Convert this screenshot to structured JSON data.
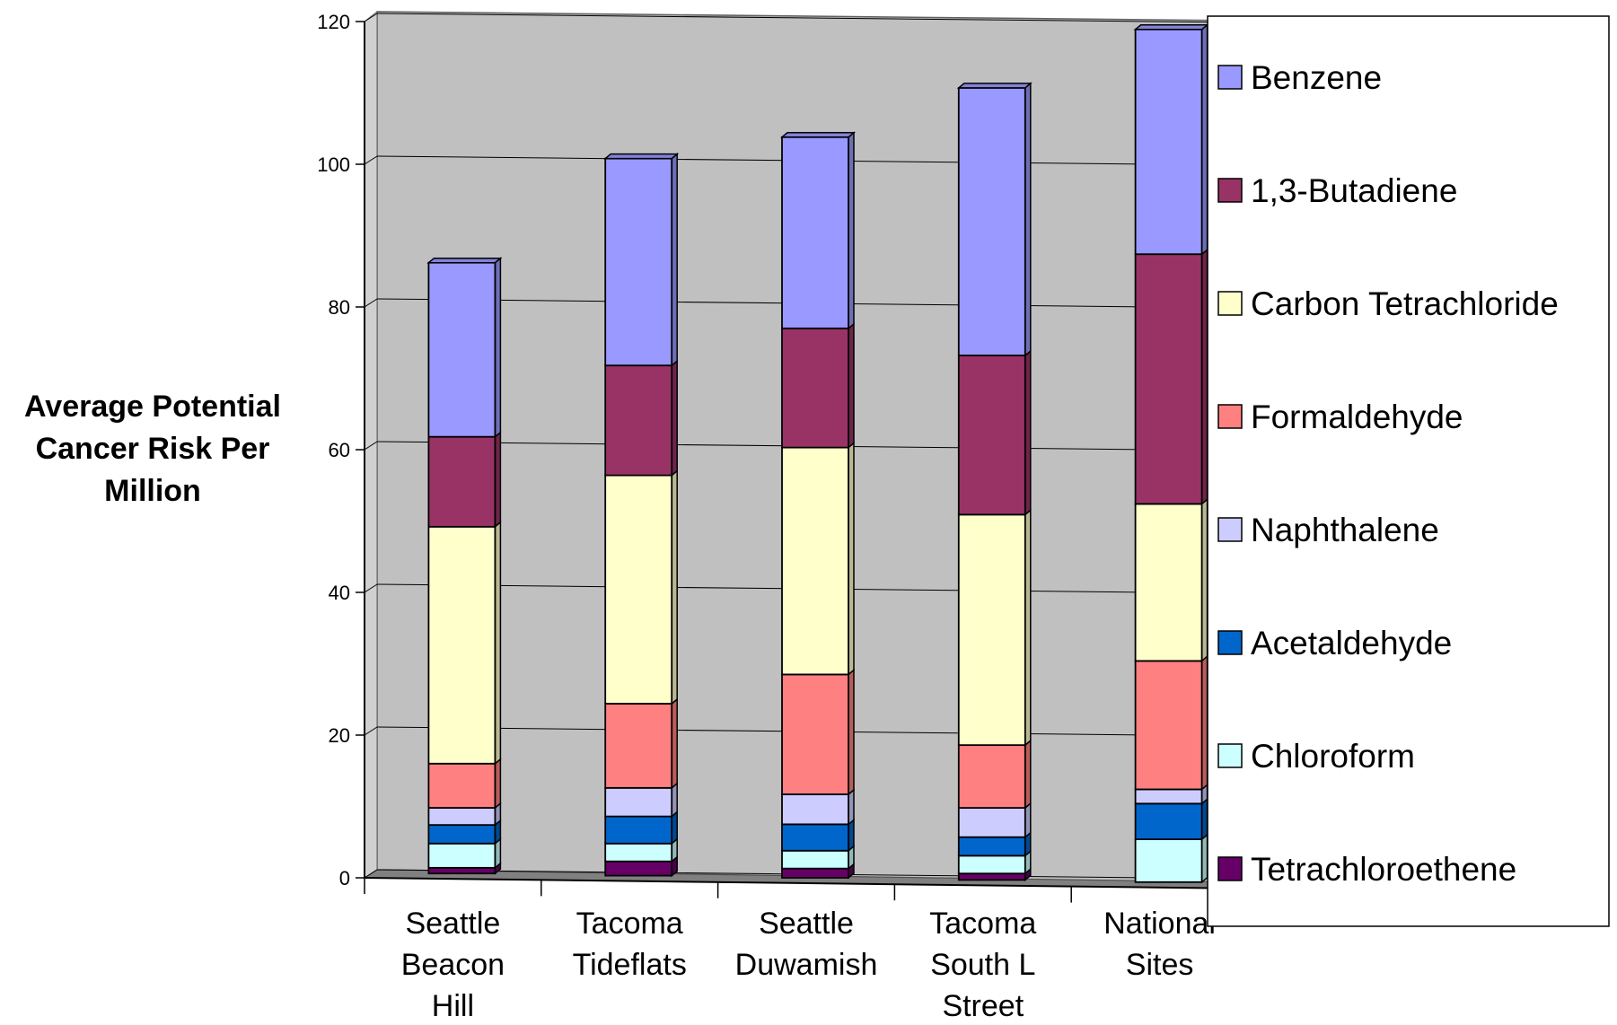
{
  "chart_data": {
    "type": "bar",
    "stacked": true,
    "three_d": true,
    "ylabel_lines": [
      "Average Potential",
      "Cancer Risk Per",
      "Million"
    ],
    "ylim": [
      0,
      120
    ],
    "yticks": [
      0,
      20,
      40,
      60,
      80,
      100,
      120
    ],
    "grid": true,
    "legend_position": "right",
    "categories": [
      [
        "Seattle",
        "Beacon",
        "Hill"
      ],
      [
        "Tacoma",
        "Tideflats"
      ],
      [
        "Seattle",
        "Duwamish"
      ],
      [
        "Tacoma",
        "South L",
        "Street"
      ],
      [
        "National",
        "Sites"
      ]
    ],
    "series": [
      {
        "name": "Tetrachloroethene",
        "color": "#660066",
        "values": [
          0.8,
          2.0,
          1.3,
          0.9,
          0.0
        ]
      },
      {
        "name": "Chloroform",
        "color": "#ccffff",
        "values": [
          3.4,
          2.5,
          2.5,
          2.5,
          6.0
        ]
      },
      {
        "name": "Acetaldehyde",
        "color": "#0066cc",
        "values": [
          2.6,
          3.8,
          3.7,
          2.6,
          5.0
        ]
      },
      {
        "name": "Naphthalene",
        "color": "#ccccff",
        "values": [
          2.4,
          4.0,
          4.2,
          4.1,
          2.0
        ]
      },
      {
        "name": "Formaldehyde",
        "color": "#ff8080",
        "values": [
          6.2,
          11.8,
          16.8,
          8.8,
          18.0
        ]
      },
      {
        "name": "Carbon Tetrachloride",
        "color": "#ffffcc",
        "values": [
          33.2,
          32.0,
          31.8,
          32.3,
          22.0
        ]
      },
      {
        "name": "1,3-Butadiene",
        "color": "#993366",
        "values": [
          12.6,
          15.4,
          16.7,
          22.3,
          35.0
        ]
      },
      {
        "name": "Benzene",
        "color": "#9999ff",
        "values": [
          24.4,
          29.0,
          26.8,
          37.5,
          31.5
        ]
      }
    ],
    "legend_order": [
      "Benzene",
      "1,3-Butadiene",
      "Carbon Tetrachloride",
      "Formaldehyde",
      "Naphthalene",
      "Acetaldehyde",
      "Chloroform",
      "Tetrachloroethene"
    ],
    "colors": {
      "wall": "#c0c0c0",
      "floor": "#808080",
      "gridline": "#000000",
      "axis": "#000000"
    }
  }
}
